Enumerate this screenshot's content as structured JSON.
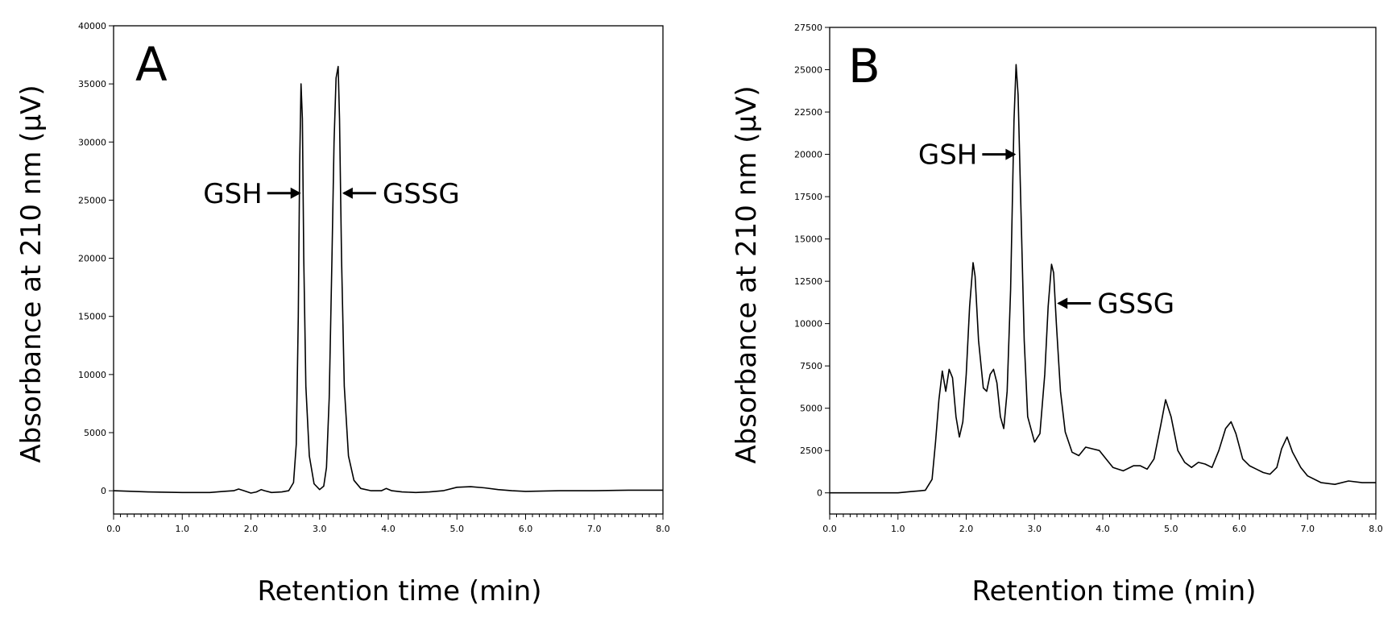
{
  "chart_data": [
    {
      "type": "line",
      "panel_label": "A",
      "xlabel": "Retention time (min)",
      "ylabel": "Absorbance at 210 nm (μV)",
      "xlim": [
        0,
        8
      ],
      "ylim": [
        -2000,
        40000
      ],
      "xticks": [
        0,
        1,
        2,
        3,
        4,
        5,
        6,
        7,
        8
      ],
      "xtick_labels": [
        "0.0",
        "1.0",
        "2.0",
        "3.0",
        "4.0",
        "5.0",
        "6.0",
        "7.0",
        "8.0"
      ],
      "yticks": [
        0,
        5000,
        10000,
        15000,
        20000,
        25000,
        30000,
        35000,
        40000
      ],
      "ytick_labels": [
        "0",
        "5000",
        "10000",
        "15000",
        "20000",
        "25000",
        "30000",
        "35000",
        "40000"
      ],
      "grid": false,
      "series": [
        {
          "x": [
            0,
            0.5,
            1.0,
            1.4,
            1.6,
            1.75,
            1.82,
            1.9,
            2.0,
            2.08,
            2.15,
            2.2,
            2.3,
            2.45,
            2.55,
            2.62,
            2.66,
            2.69,
            2.71,
            2.73,
            2.75,
            2.77,
            2.8,
            2.85,
            2.92,
            3.0,
            3.06,
            3.1,
            3.14,
            3.18,
            3.21,
            3.24,
            3.27,
            3.29,
            3.32,
            3.36,
            3.42,
            3.5,
            3.6,
            3.75,
            3.9,
            3.97,
            4.05,
            4.2,
            4.4,
            4.6,
            4.8,
            5.0,
            5.2,
            5.4,
            5.6,
            5.8,
            6.0,
            6.5,
            7.0,
            7.5,
            8.0
          ],
          "y": [
            0,
            -100,
            -150,
            -150,
            -50,
            0,
            150,
            0,
            -200,
            -100,
            100,
            0,
            -150,
            -100,
            0,
            700,
            4000,
            15000,
            28000,
            35000,
            32000,
            20000,
            9000,
            3000,
            600,
            100,
            400,
            2000,
            8000,
            20000,
            30000,
            35500,
            36500,
            32000,
            20000,
            9000,
            3000,
            900,
            200,
            0,
            0,
            200,
            0,
            -100,
            -150,
            -100,
            0,
            300,
            350,
            250,
            100,
            0,
            -50,
            0,
            0,
            50,
            50
          ]
        }
      ],
      "annotations": [
        {
          "text": "GSH",
          "arrow": "right",
          "x": 2.73,
          "y": 25600
        },
        {
          "text": "GSSG",
          "arrow": "left",
          "x": 3.33,
          "y": 25600
        }
      ]
    },
    {
      "type": "line",
      "panel_label": "B",
      "xlabel": "Retention time (min)",
      "ylabel": "Absorbance at 210 nm (μV)",
      "xlim": [
        0,
        8
      ],
      "ylim": [
        -1250,
        27500
      ],
      "xticks": [
        0,
        1,
        2,
        3,
        4,
        5,
        6,
        7,
        8
      ],
      "xtick_labels": [
        "0.0",
        "1.0",
        "2.0",
        "3.0",
        "4.0",
        "5.0",
        "6.0",
        "7.0",
        "8.0"
      ],
      "yticks": [
        0,
        2500,
        5000,
        7500,
        10000,
        12500,
        15000,
        17500,
        20000,
        22500,
        25000,
        27500
      ],
      "ytick_labels": [
        "0",
        "2500",
        "5000",
        "7500",
        "10000",
        "12500",
        "15000",
        "17500",
        "20000",
        "22500",
        "25000",
        "27500"
      ],
      "grid": false,
      "series": [
        {
          "x": [
            0,
            0.5,
            1.0,
            1.2,
            1.4,
            1.5,
            1.55,
            1.6,
            1.65,
            1.7,
            1.75,
            1.8,
            1.85,
            1.9,
            1.95,
            2.0,
            2.05,
            2.1,
            2.13,
            2.18,
            2.25,
            2.3,
            2.35,
            2.4,
            2.45,
            2.5,
            2.55,
            2.6,
            2.65,
            2.7,
            2.73,
            2.76,
            2.8,
            2.85,
            2.9,
            3.0,
            3.08,
            3.15,
            3.2,
            3.25,
            3.28,
            3.32,
            3.38,
            3.45,
            3.55,
            3.65,
            3.75,
            3.85,
            3.95,
            4.05,
            4.15,
            4.3,
            4.45,
            4.55,
            4.65,
            4.75,
            4.85,
            4.92,
            5.0,
            5.1,
            5.2,
            5.3,
            5.4,
            5.5,
            5.6,
            5.7,
            5.8,
            5.88,
            5.95,
            6.05,
            6.15,
            6.25,
            6.35,
            6.45,
            6.55,
            6.62,
            6.7,
            6.78,
            6.9,
            7.0,
            7.2,
            7.4,
            7.6,
            7.8,
            8.0
          ],
          "y": [
            0,
            0,
            0,
            80,
            150,
            800,
            3000,
            5500,
            7200,
            6000,
            7300,
            6800,
            4500,
            3300,
            4200,
            7000,
            11000,
            13600,
            12800,
            9000,
            6200,
            6000,
            7000,
            7300,
            6500,
            4500,
            3800,
            6000,
            12000,
            22000,
            25300,
            23500,
            17000,
            9000,
            4500,
            3000,
            3500,
            7000,
            11000,
            13500,
            13000,
            10000,
            6000,
            3600,
            2400,
            2200,
            2700,
            2600,
            2500,
            2000,
            1500,
            1300,
            1600,
            1600,
            1400,
            2000,
            4000,
            5500,
            4500,
            2500,
            1800,
            1500,
            1800,
            1700,
            1500,
            2500,
            3800,
            4200,
            3500,
            2000,
            1600,
            1400,
            1200,
            1100,
            1500,
            2600,
            3300,
            2400,
            1500,
            1000,
            600,
            500,
            700,
            600,
            600
          ]
        }
      ],
      "annotations": [
        {
          "text": "GSH",
          "arrow": "right",
          "x": 2.73,
          "y": 20000
        },
        {
          "text": "GSSG",
          "arrow": "left",
          "x": 3.33,
          "y": 11200
        }
      ]
    }
  ]
}
